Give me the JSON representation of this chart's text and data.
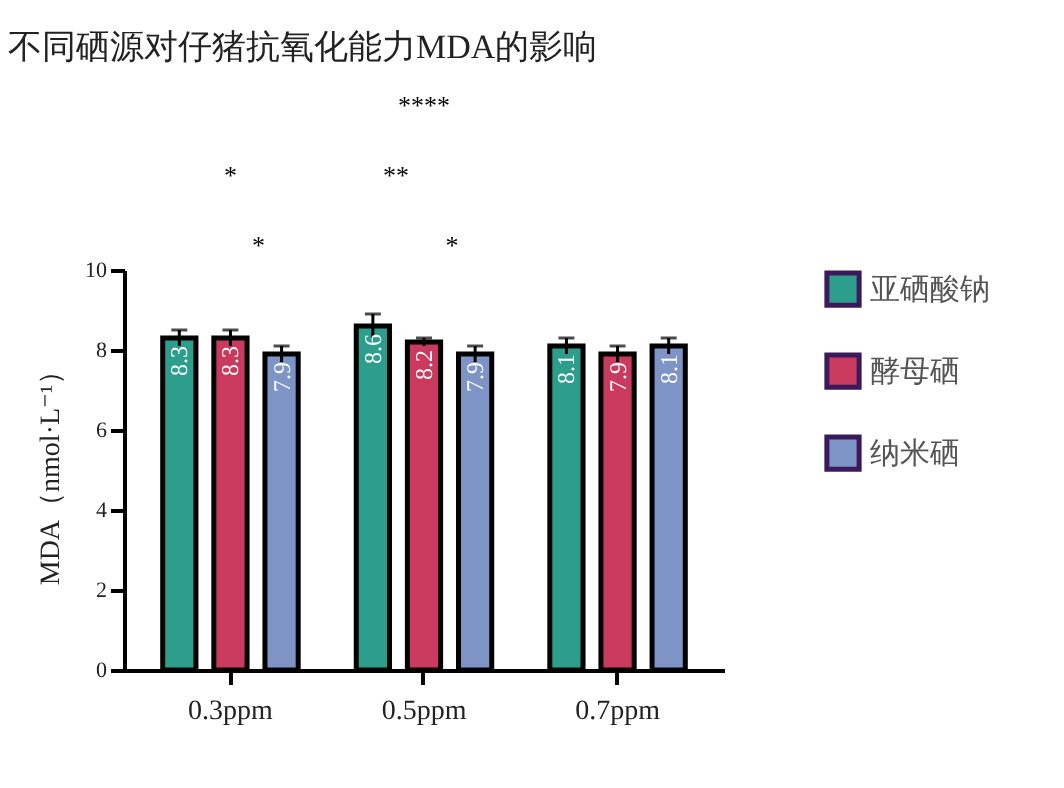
{
  "chart_data": {
    "type": "bar",
    "title": "不同硒源对仔猪抗氧化能力MDA的影响",
    "ylabel": "MDA（nmol·L⁻¹）",
    "categories": [
      "0.3ppm",
      "0.5ppm",
      "0.7ppm"
    ],
    "series": [
      {
        "name": "亚硒酸钠",
        "color": "#2e9e8c",
        "values": [
          8.3,
          8.6,
          8.1
        ],
        "errors": [
          0.2,
          0.3,
          0.2
        ]
      },
      {
        "name": "酵母硒",
        "color": "#c93a5e",
        "values": [
          8.3,
          8.2,
          7.9
        ],
        "errors": [
          0.2,
          0.1,
          0.2
        ]
      },
      {
        "name": "纳米硒",
        "color": "#7f94c6",
        "values": [
          7.9,
          7.9,
          8.1
        ],
        "errors": [
          0.2,
          0.2,
          0.2
        ]
      }
    ],
    "ylim": [
      0,
      10
    ],
    "yticks": [
      0,
      2,
      4,
      6,
      8,
      10
    ],
    "data_labels": true,
    "legend": "right",
    "annotations": [
      "*",
      "*",
      "****",
      "**",
      "*"
    ]
  }
}
